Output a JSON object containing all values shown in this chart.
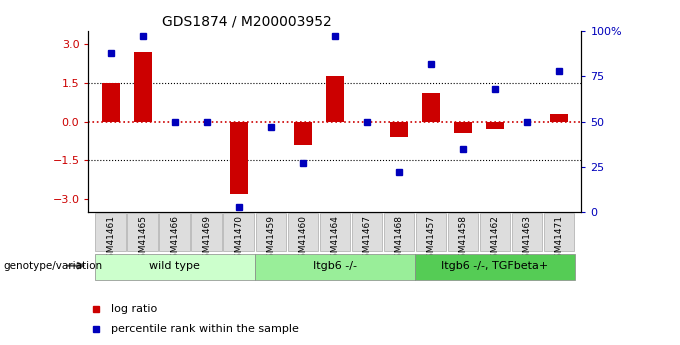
{
  "title": "GDS1874 / M200003952",
  "samples": [
    "GSM41461",
    "GSM41465",
    "GSM41466",
    "GSM41469",
    "GSM41470",
    "GSM41459",
    "GSM41460",
    "GSM41464",
    "GSM41467",
    "GSM41468",
    "GSM41457",
    "GSM41458",
    "GSM41462",
    "GSM41463",
    "GSM41471"
  ],
  "log_ratio": [
    1.5,
    2.7,
    0.0,
    0.0,
    -2.8,
    0.0,
    -0.9,
    1.75,
    0.0,
    -0.6,
    1.1,
    -0.45,
    -0.3,
    0.0,
    0.3
  ],
  "percentile_rank": [
    88,
    97,
    50,
    50,
    3,
    47,
    27,
    97,
    50,
    22,
    82,
    35,
    68,
    50,
    78
  ],
  "groups": [
    {
      "label": "wild type",
      "start": 0,
      "end": 4,
      "color": "#ccffcc"
    },
    {
      "label": "Itgb6 -/-",
      "start": 5,
      "end": 9,
      "color": "#99ee99"
    },
    {
      "label": "Itgb6 -/-, TGFbeta+",
      "start": 10,
      "end": 14,
      "color": "#55cc55"
    }
  ],
  "bar_color": "#cc0000",
  "dot_color": "#0000bb",
  "ylim_left": [
    -3.5,
    3.5
  ],
  "ylim_right": [
    0,
    100
  ],
  "yticks_left": [
    -3,
    -1.5,
    0,
    1.5,
    3
  ],
  "yticks_right": [
    0,
    25,
    50,
    75,
    100
  ],
  "hlines_dotted": [
    1.5,
    -1.5
  ],
  "legend_items": [
    {
      "label": "log ratio",
      "color": "#cc0000"
    },
    {
      "label": "percentile rank within the sample",
      "color": "#0000bb"
    }
  ]
}
